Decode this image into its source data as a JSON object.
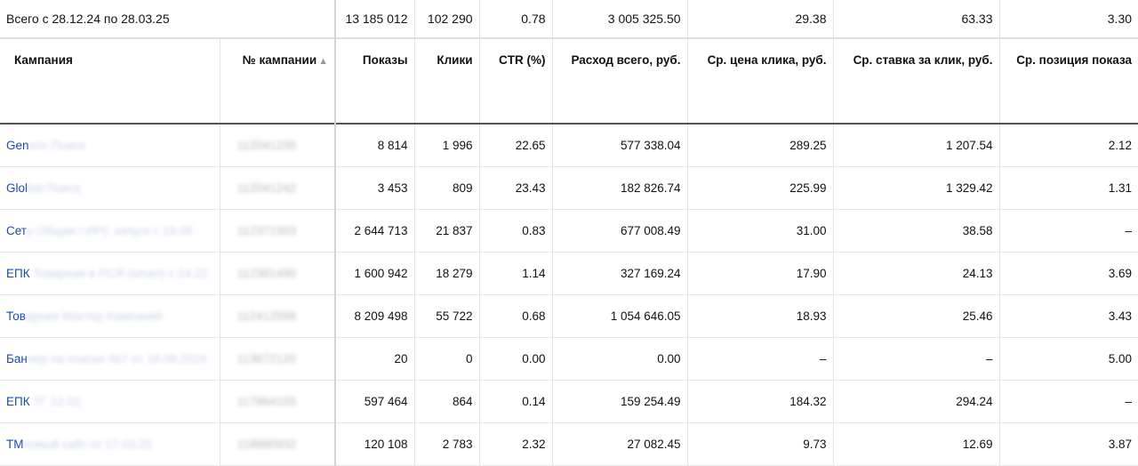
{
  "total": {
    "label": "Всего с 28.12.24 по 28.03.25",
    "impressions": "13 185 012",
    "clicks": "102 290",
    "ctr": "0.78",
    "spend": "3 005 325.50",
    "avg_cpc": "29.38",
    "avg_bid": "63.33",
    "avg_pos": "3.30"
  },
  "columns": {
    "campaign": "Кампания",
    "campaign_no": "№ кампании",
    "sort_indicator": "▲",
    "impressions": "Показы",
    "clicks": "Клики",
    "ctr": "CTR (%)",
    "spend": "Расход всего, руб.",
    "avg_cpc": "Ср. цена клика, руб.",
    "avg_bid": "Ср. ставка за клик, руб.",
    "avg_pos": "Ср. позиция показа"
  },
  "rows": [
    {
      "name_visible": "Gen",
      "name_blurred": "eric Поиск",
      "id_blurred": "112041235",
      "impressions": "8 814",
      "clicks": "1 996",
      "ctr": "22.65",
      "spend": "577 338.04",
      "avg_cpc": "289.25",
      "avg_bid": "1 207.54",
      "avg_pos": "2.12"
    },
    {
      "name_visible": "Glol",
      "name_blurred": "bal Поиск",
      "id_blurred": "112041242",
      "impressions": "3 453",
      "clicks": "809",
      "ctr": "23.43",
      "spend": "182 826.74",
      "avg_cpc": "225.99",
      "avg_bid": "1 329.42",
      "avg_pos": "1.31"
    },
    {
      "name_visible": "Сет",
      "name_blurred": "ь Общая / ИРС запуск с 19.08",
      "id_blurred": "112371503",
      "impressions": "2 644 713",
      "clicks": "21 837",
      "ctr": "0.83",
      "spend": "677 008.49",
      "avg_cpc": "31.00",
      "avg_bid": "38.58",
      "avg_pos": "–"
    },
    {
      "name_visible": "ЕПК",
      "name_blurred": " Товарная в РСЯ (smart) с 24.22",
      "id_blurred": "112381490",
      "impressions": "1 600 942",
      "clicks": "18 279",
      "ctr": "1.14",
      "spend": "327 169.24",
      "avg_cpc": "17.90",
      "avg_bid": "24.13",
      "avg_pos": "3.69"
    },
    {
      "name_visible": "Тов",
      "name_blurred": "арная Мастер Кампаний",
      "id_blurred": "112412598",
      "impressions": "8 209 498",
      "clicks": "55 722",
      "ctr": "0.68",
      "spend": "1 054 646.05",
      "avg_cpc": "18.93",
      "avg_bid": "25.46",
      "avg_pos": "3.43"
    },
    {
      "name_visible": "Бан",
      "name_blurred": "нер на поиске №7 от 18.08.2024",
      "id_blurred": "113672120",
      "impressions": "20",
      "clicks": "0",
      "ctr": "0.00",
      "spend": "0.00",
      "avg_cpc": "–",
      "avg_bid": "–",
      "avg_pos": "5.00"
    },
    {
      "name_visible": "ЕПК",
      "name_blurred": " ТГ 12.02",
      "id_blurred": "117864155",
      "impressions": "597 464",
      "clicks": "864",
      "ctr": "0.14",
      "spend": "159 254.49",
      "avg_cpc": "184.32",
      "avg_bid": "294.24",
      "avg_pos": "–"
    },
    {
      "name_visible": "ТМ",
      "name_blurred": "новый сайт от 17.03.25",
      "id_blurred": "118880932",
      "impressions": "120 108",
      "clicks": "2 783",
      "ctr": "2.32",
      "spend": "27 082.45",
      "avg_cpc": "9.73",
      "avg_bid": "12.69",
      "avg_pos": "3.87"
    }
  ],
  "colors": {
    "link": "#1a47c0",
    "header_rule": "#555555",
    "grid": "#e3e3e3"
  }
}
